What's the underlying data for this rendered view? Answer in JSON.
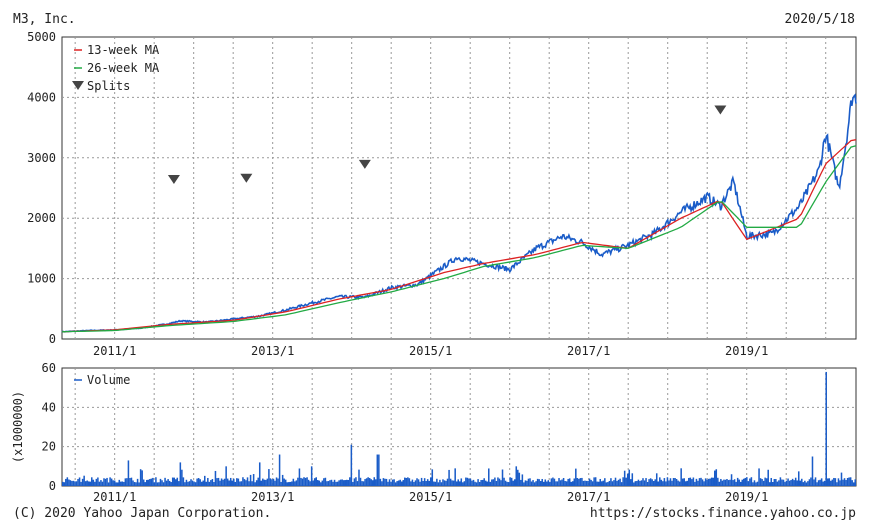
{
  "header": {
    "company": "M3, Inc.",
    "date": "2020/5/18"
  },
  "footer": {
    "copyright": "(C) 2020 Yahoo Japan Corporation.",
    "url": "https://stocks.finance.yahoo.co.jp"
  },
  "chart_data": [
    {
      "type": "line",
      "panel": "price",
      "ylim": [
        0,
        5000
      ],
      "y_ticks": [
        "0",
        "1000",
        "2000",
        "3000",
        "4000",
        "5000"
      ],
      "x_range": [
        "2010-05",
        "2020-05"
      ],
      "x_ticks": [
        "2011/1",
        "2013/1",
        "2015/1",
        "2017/1",
        "2019/1"
      ],
      "grid": true,
      "legend_position": "top-left",
      "legend": [
        "13-week MA",
        "26-week MA",
        "Splits"
      ],
      "colors": {
        "price": "#1a5cc8",
        "ma13": "#dd2222",
        "ma26": "#22aa44",
        "split": "#444444"
      },
      "series": [
        {
          "name": "",
          "x": [
            "2010-05",
            "2010-09",
            "2011-01",
            "2011-05",
            "2011-09",
            "2011-11",
            "2012-03",
            "2012-07",
            "2012-11",
            "2013-03",
            "2013-07",
            "2013-11",
            "2014-03",
            "2014-07",
            "2014-11",
            "2015-03",
            "2015-05",
            "2015-09",
            "2016-01",
            "2016-05",
            "2016-09",
            "2016-12",
            "2017-03",
            "2017-07",
            "2017-11",
            "2018-03",
            "2018-07",
            "2018-09",
            "2018-11",
            "2019-01",
            "2019-05",
            "2019-09",
            "2019-12",
            "2020-01",
            "2020-03",
            "2020-04",
            "2020-05"
          ],
          "y": [
            120,
            140,
            150,
            180,
            250,
            300,
            280,
            330,
            380,
            480,
            600,
            700,
            690,
            850,
            900,
            1200,
            1350,
            1250,
            1150,
            1500,
            1700,
            1600,
            1400,
            1550,
            1750,
            2100,
            2350,
            2200,
            2600,
            1700,
            1750,
            2200,
            2800,
            3400,
            2500,
            3200,
            4000
          ]
        },
        {
          "name": "13-week MA",
          "x": [
            "2010-05",
            "2011-01",
            "2011-09",
            "2012-07",
            "2013-03",
            "2013-11",
            "2014-07",
            "2015-03",
            "2015-09",
            "2016-05",
            "2016-12",
            "2017-07",
            "2018-03",
            "2018-09",
            "2019-01",
            "2019-09",
            "2020-01",
            "2020-05"
          ],
          "y": [
            120,
            150,
            240,
            310,
            450,
            660,
            820,
            1100,
            1250,
            1400,
            1600,
            1500,
            2000,
            2300,
            1650,
            2000,
            2900,
            3300
          ]
        },
        {
          "name": "26-week MA",
          "x": [
            "2010-05",
            "2011-01",
            "2011-09",
            "2012-07",
            "2013-03",
            "2013-11",
            "2014-07",
            "2015-03",
            "2015-09",
            "2016-05",
            "2016-12",
            "2017-07",
            "2018-03",
            "2018-09",
            "2019-01",
            "2019-09",
            "2020-01",
            "2020-05"
          ],
          "y": [
            120,
            140,
            220,
            290,
            400,
            600,
            780,
            1000,
            1200,
            1350,
            1550,
            1500,
            1850,
            2300,
            1850,
            1850,
            2600,
            3200
          ]
        }
      ],
      "splits": [
        {
          "x": "2011-10",
          "y": 2650
        },
        {
          "x": "2012-09",
          "y": 2670
        },
        {
          "x": "2014-03",
          "y": 2900
        },
        {
          "x": "2018-09",
          "y": 3800
        }
      ]
    },
    {
      "type": "bar",
      "panel": "volume",
      "ylim": [
        0,
        60
      ],
      "y_ticks": [
        "0",
        "20",
        "40",
        "60"
      ],
      "ylabel": "(x1000000)",
      "x_ticks": [
        "2011/1",
        "2013/1",
        "2015/1",
        "2017/1",
        "2019/1"
      ],
      "grid": true,
      "legend": [
        "Volume"
      ],
      "colors": {
        "volume": "#1a5cc8"
      },
      "baseline": 3,
      "spikes": [
        {
          "x": "2011-03",
          "y": 13
        },
        {
          "x": "2011-11",
          "y": 12
        },
        {
          "x": "2012-06",
          "y": 10
        },
        {
          "x": "2012-11",
          "y": 12
        },
        {
          "x": "2013-02",
          "y": 16
        },
        {
          "x": "2013-07",
          "y": 10
        },
        {
          "x": "2014-01",
          "y": 21
        },
        {
          "x": "2014-05",
          "y": 16
        },
        {
          "x": "2016-02",
          "y": 10
        },
        {
          "x": "2018-03",
          "y": 9
        },
        {
          "x": "2019-11",
          "y": 15
        },
        {
          "x": "2020-01",
          "y": 58
        }
      ]
    }
  ]
}
